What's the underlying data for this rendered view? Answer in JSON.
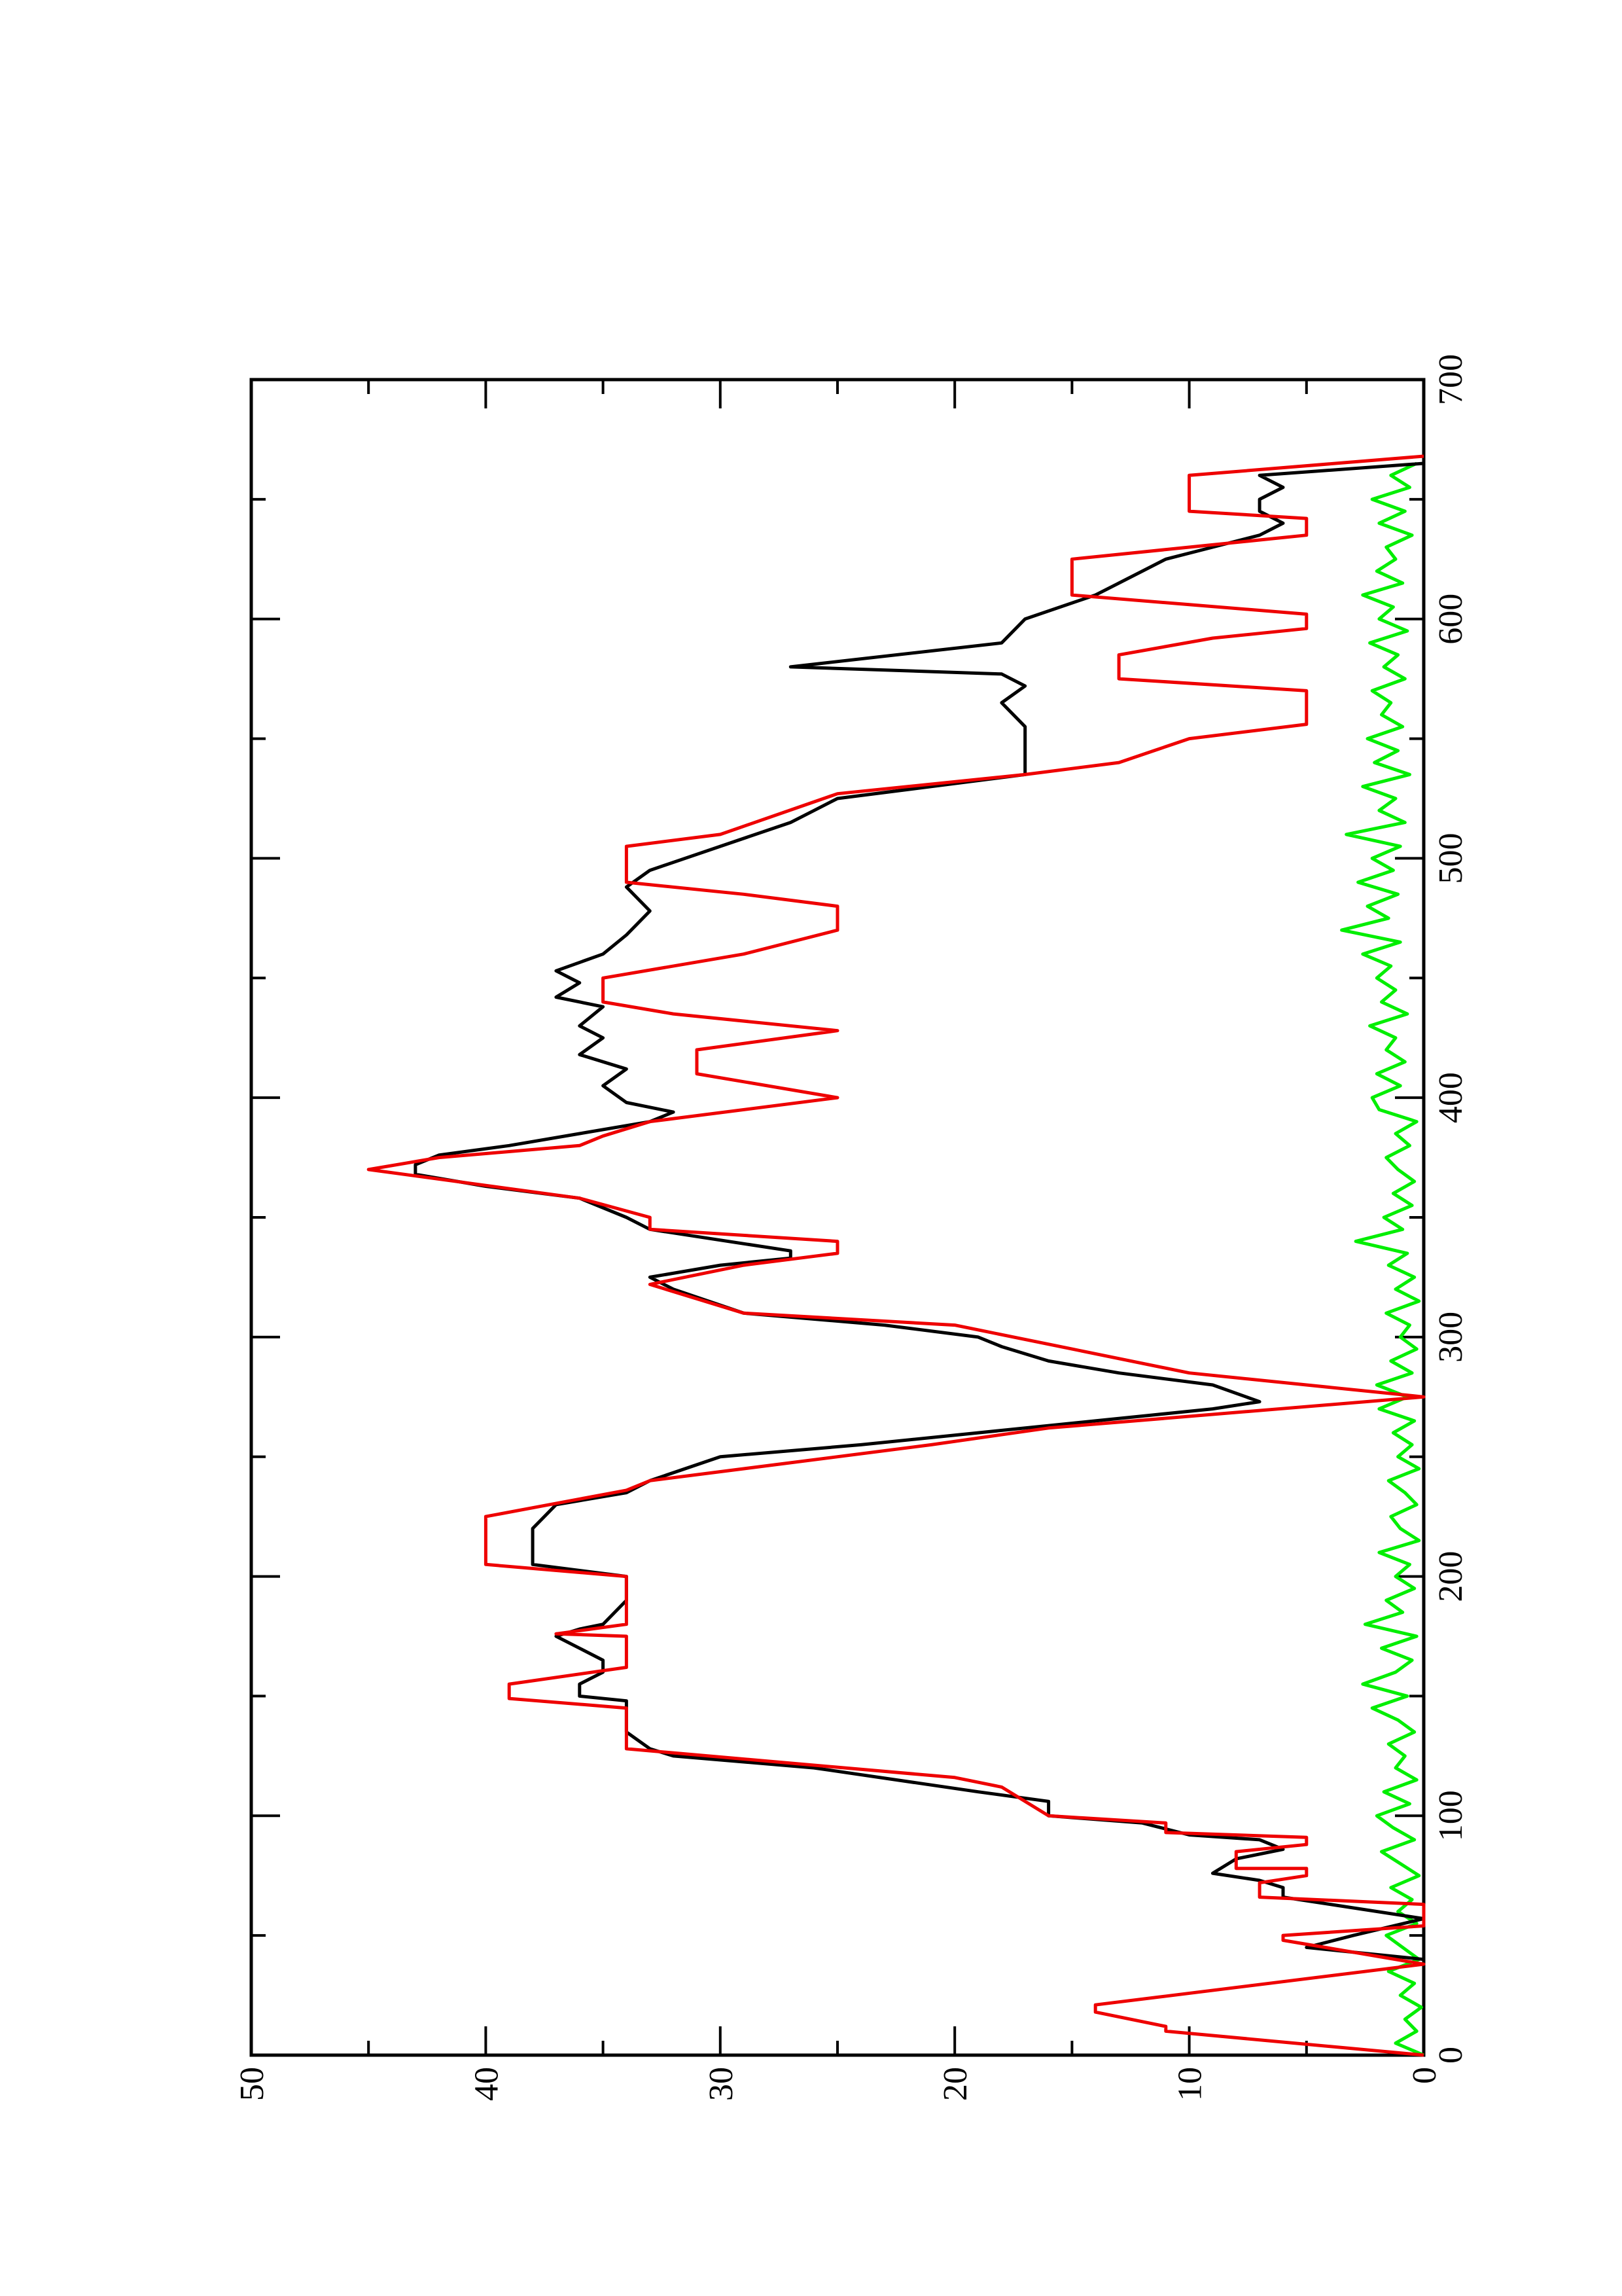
{
  "chart_data": {
    "type": "line",
    "xlim": [
      0,
      700
    ],
    "ylim": [
      0,
      50
    ],
    "xticks": [
      0,
      100,
      200,
      300,
      400,
      500,
      600,
      700
    ],
    "xticks_minor": [
      50,
      150,
      250,
      350,
      450,
      550,
      650
    ],
    "yticks": [
      0,
      10,
      20,
      30,
      40,
      50
    ],
    "yticks_minor": [
      5,
      15,
      25,
      35,
      45
    ],
    "rotated": true,
    "series": [
      {
        "color": "#00ee00",
        "x": [
          0,
          5,
          10,
          15,
          20,
          25,
          30,
          35,
          40,
          45,
          50,
          55,
          60,
          65,
          70,
          75,
          80,
          85,
          90,
          95,
          100,
          105,
          110,
          115,
          120,
          125,
          130,
          135,
          140,
          145,
          150,
          155,
          160,
          165,
          170,
          175,
          180,
          185,
          190,
          195,
          200,
          205,
          210,
          215,
          220,
          225,
          230,
          235,
          240,
          245,
          250,
          255,
          260,
          265,
          270,
          275,
          280,
          285,
          290,
          295,
          300,
          305,
          310,
          315,
          320,
          325,
          330,
          335,
          340,
          345,
          350,
          355,
          360,
          365,
          370,
          375,
          380,
          385,
          390,
          395,
          400,
          405,
          410,
          415,
          420,
          425,
          430,
          435,
          440,
          445,
          450,
          455,
          460,
          465,
          470,
          475,
          480,
          485,
          490,
          495,
          500,
          505,
          510,
          515,
          520,
          525,
          530,
          535,
          540,
          545,
          550,
          555,
          560,
          565,
          570,
          575,
          580,
          585,
          590,
          595,
          600,
          605,
          610,
          615,
          620,
          625,
          630,
          635,
          640,
          645,
          650,
          655,
          660,
          665
        ],
        "values": [
          0,
          1.2,
          0.3,
          0.8,
          0.1,
          1.0,
          0.4,
          1.5,
          0.2,
          0.9,
          1.6,
          0.3,
          1.1,
          0.5,
          1.4,
          0.2,
          1.0,
          1.8,
          0.4,
          1.3,
          2.0,
          0.6,
          1.7,
          0.3,
          1.2,
          0.8,
          1.5,
          0.4,
          1.1,
          2.2,
          0.7,
          2.6,
          1.2,
          0.5,
          1.8,
          0.3,
          2.5,
          0.9,
          1.6,
          0.4,
          1.2,
          0.6,
          1.9,
          0.2,
          1.0,
          1.4,
          0.3,
          0.8,
          1.5,
          0.2,
          1.1,
          0.5,
          1.3,
          0.4,
          1.9,
          0.7,
          2.0,
          0.5,
          1.4,
          0.3,
          1.0,
          0.6,
          1.6,
          0.2,
          1.2,
          0.4,
          1.5,
          0.7,
          2.9,
          0.9,
          1.7,
          0.5,
          1.3,
          0.4,
          1.1,
          1.6,
          0.6,
          1.2,
          0.3,
          1.9,
          2.2,
          1.0,
          2.0,
          0.8,
          1.6,
          1.2,
          2.3,
          0.7,
          1.8,
          1.2,
          2.0,
          1.4,
          2.6,
          1.0,
          3.5,
          1.5,
          2.4,
          1.1,
          2.8,
          1.3,
          2.2,
          1.0,
          3.3,
          0.8,
          1.9,
          1.2,
          2.6,
          0.6,
          2.1,
          1.1,
          2.4,
          0.9,
          1.8,
          1.4,
          2.2,
          0.8,
          1.7,
          1.1,
          2.3,
          0.7,
          1.9,
          1.3,
          2.6,
          0.9,
          2.0,
          1.2,
          1.6,
          0.5,
          1.9,
          0.8,
          2.2,
          0.6,
          1.4,
          0.3
        ]
      },
      {
        "color": "#000000",
        "x": [
          40,
          45,
          50,
          57,
          66,
          70,
          73,
          76,
          82,
          86,
          90,
          92,
          97,
          100,
          106,
          110,
          120,
          125,
          128,
          135,
          148,
          150,
          155,
          160,
          165,
          170,
          175,
          178,
          180,
          190,
          200,
          205,
          210,
          220,
          230,
          235,
          240,
          250,
          255,
          260,
          265,
          270,
          273,
          280,
          285,
          290,
          296,
          300,
          305,
          310,
          320,
          325,
          330,
          333,
          336,
          345,
          350,
          358,
          363,
          368,
          372,
          376,
          380,
          385,
          390,
          394,
          398,
          405,
          412,
          418,
          425,
          430,
          438,
          442,
          448,
          453,
          460,
          468,
          478,
          488,
          495,
          505,
          515,
          520,
          525,
          535,
          545,
          555,
          565,
          572,
          577,
          580,
          590,
          600,
          610,
          615,
          620,
          625,
          630,
          635,
          640,
          645,
          650,
          655,
          660,
          665
        ],
        "values": [
          0,
          5,
          3,
          0,
          6,
          6,
          7,
          9,
          8,
          6,
          7,
          10,
          12,
          16,
          16,
          19,
          26,
          32,
          33,
          34,
          34,
          36,
          36,
          35,
          35,
          36,
          37,
          36,
          35,
          34,
          34,
          38,
          38,
          38,
          37,
          34,
          33,
          30,
          24,
          19,
          14,
          9,
          7,
          9,
          13,
          16,
          18,
          19,
          23,
          29,
          32,
          33,
          30,
          27,
          27,
          33,
          34,
          36,
          40,
          43,
          43,
          42,
          39,
          36,
          33,
          32,
          34,
          35,
          34,
          36,
          35,
          36,
          35,
          37,
          36,
          37,
          35,
          34,
          33,
          34,
          33,
          30,
          27,
          26,
          25,
          17,
          17,
          17,
          18,
          17,
          18,
          27,
          18,
          17,
          14,
          13,
          12,
          11,
          9,
          7,
          6,
          7,
          7,
          6,
          7,
          0
        ]
      },
      {
        "color": "#ee0000",
        "x": [
          0,
          10,
          12,
          18,
          21,
          38,
          48,
          50,
          54,
          57,
          63,
          66,
          72,
          75,
          78,
          78,
          85,
          88,
          91,
          93,
          97,
          100,
          112,
          116,
          128,
          145,
          149,
          155,
          162,
          175,
          176,
          180,
          200,
          205,
          225,
          236,
          240,
          255,
          262,
          275,
          280,
          285,
          295,
          305,
          310,
          322,
          330,
          335,
          340,
          345,
          350,
          358,
          370,
          375,
          380,
          384,
          390,
          400,
          410,
          420,
          428,
          435,
          440,
          450,
          460,
          470,
          480,
          485,
          490,
          505,
          510,
          527,
          535,
          540,
          550,
          556,
          570,
          575,
          585,
          592,
          596,
          602,
          606,
          610,
          625,
          630,
          635,
          642,
          645,
          660,
          668
        ],
        "values": [
          0,
          11,
          11,
          14,
          14,
          0,
          6,
          6,
          0,
          0,
          0,
          7,
          7,
          5,
          5,
          8,
          8,
          5,
          5,
          11,
          11,
          16,
          18,
          20,
          34,
          34,
          39,
          39,
          34,
          34,
          37,
          34,
          34,
          40,
          40,
          34,
          33,
          21,
          16,
          0,
          5,
          10,
          15,
          20,
          29,
          33,
          29,
          25,
          25,
          33,
          33,
          36,
          45,
          42,
          36,
          35,
          33,
          25,
          31,
          31,
          25,
          32,
          35,
          35,
          29,
          25,
          25,
          29,
          34,
          34,
          30,
          25,
          17,
          13,
          10,
          5,
          5,
          13,
          13,
          9,
          5,
          5,
          10,
          15,
          15,
          10,
          5,
          5,
          10,
          10,
          0
        ]
      }
    ]
  }
}
